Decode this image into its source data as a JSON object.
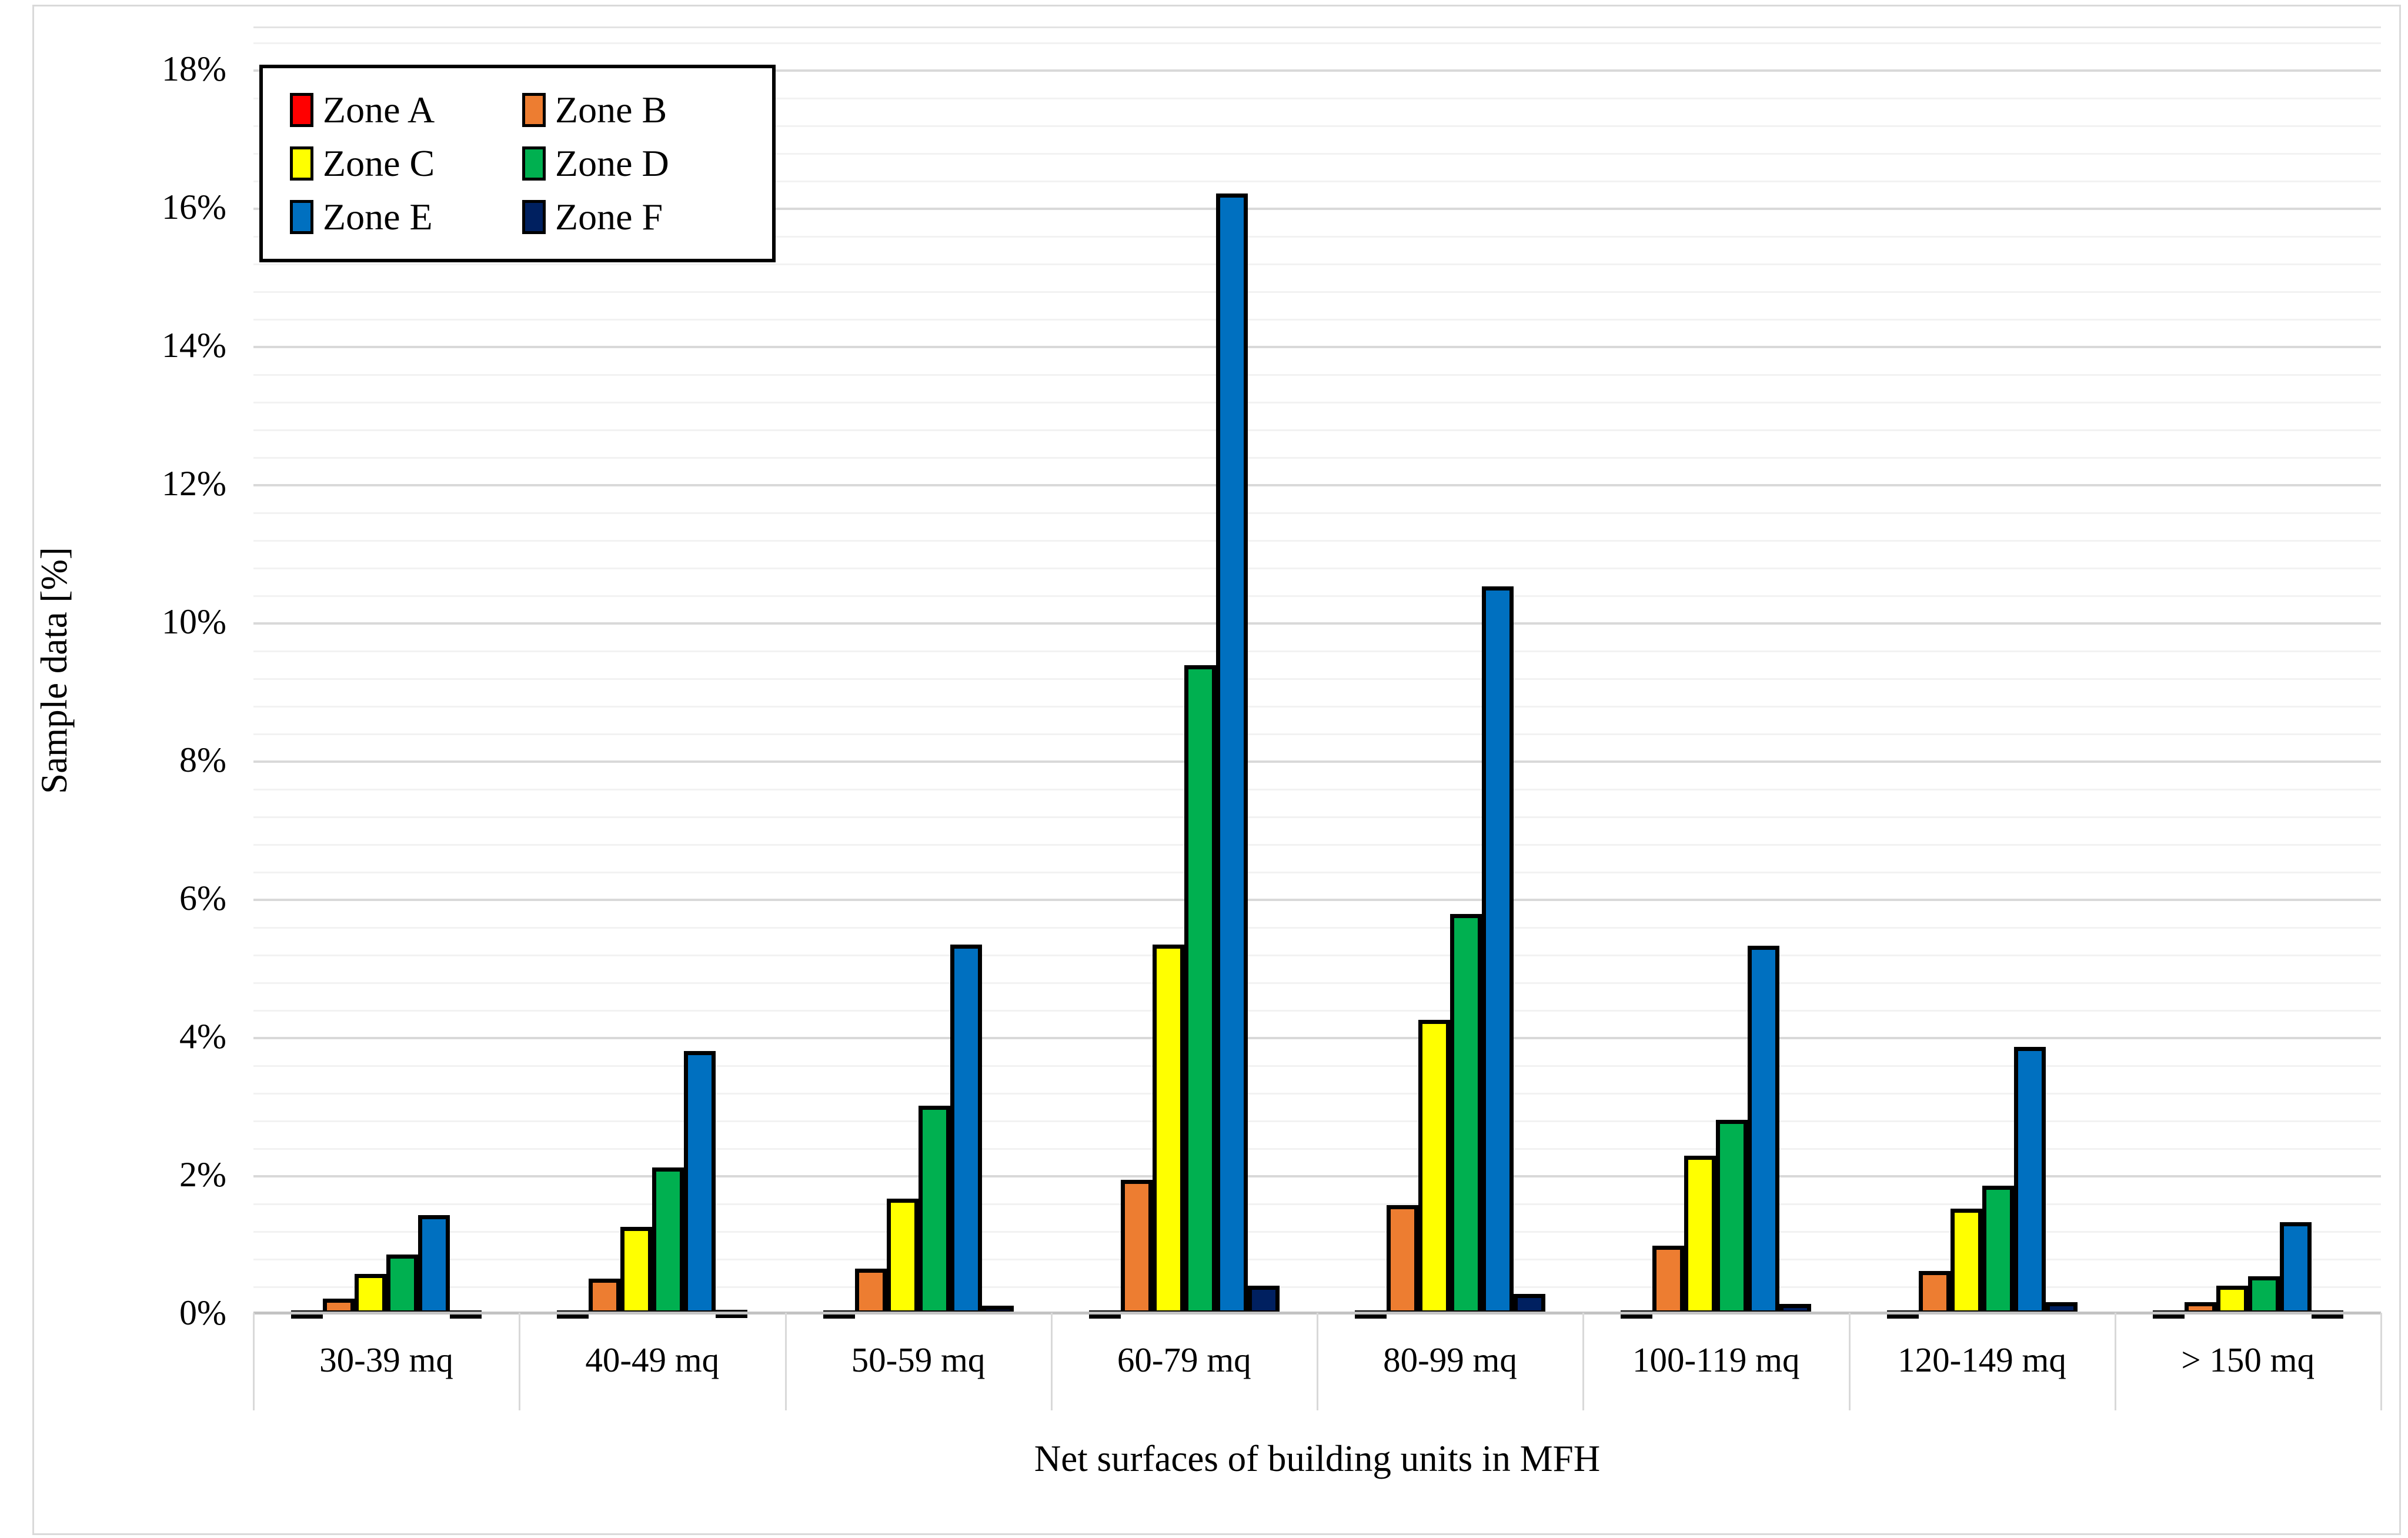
{
  "chart_data": {
    "type": "bar",
    "categories": [
      "30-39 mq",
      "40-49 mq",
      "50-59 mq",
      "60-79 mq",
      "80-99 mq",
      "100-119 mq",
      "120-149 mq",
      "> 150 mq"
    ],
    "series": [
      {
        "name": "Zone A",
        "color": "#FF0000",
        "values": [
          0.02,
          0.02,
          0.02,
          0.03,
          0.02,
          0.02,
          0.02,
          0.02
        ]
      },
      {
        "name": "Zone B",
        "color": "#ED7D31",
        "values": [
          0.23,
          0.52,
          0.66,
          1.95,
          1.58,
          1.0,
          0.63,
          0.18
        ]
      },
      {
        "name": "Zone C",
        "color": "#FFFF00",
        "values": [
          0.59,
          1.27,
          1.68,
          5.35,
          4.26,
          2.3,
          1.53,
          0.42
        ]
      },
      {
        "name": "Zone D",
        "color": "#00B050",
        "values": [
          0.87,
          2.13,
          3.02,
          9.4,
          5.8,
          2.82,
          1.86,
          0.55
        ]
      },
      {
        "name": "Zone E",
        "color": "#0070C0",
        "values": [
          1.44,
          3.81,
          5.35,
          16.22,
          10.54,
          5.34,
          3.87,
          1.34
        ]
      },
      {
        "name": "Zone F",
        "color": "#002060",
        "values": [
          0.05,
          0.07,
          0.13,
          0.42,
          0.3,
          0.15,
          0.18,
          0.04
        ]
      }
    ],
    "xlabel": "Net surfaces of building units in MFH",
    "ylabel": "Sample data [%]",
    "ylim": [
      0,
      18.6
    ],
    "y_major_step": 2,
    "y_minor_step": 0.4,
    "y_tick_labels": [
      "0%",
      "2%",
      "4%",
      "6%",
      "8%",
      "10%",
      "12%",
      "14%",
      "16%",
      "18%"
    ],
    "grid": "horizontal-major-and-minor",
    "legend_position": "top-left-inside",
    "bar_outline_color": "#000000"
  }
}
